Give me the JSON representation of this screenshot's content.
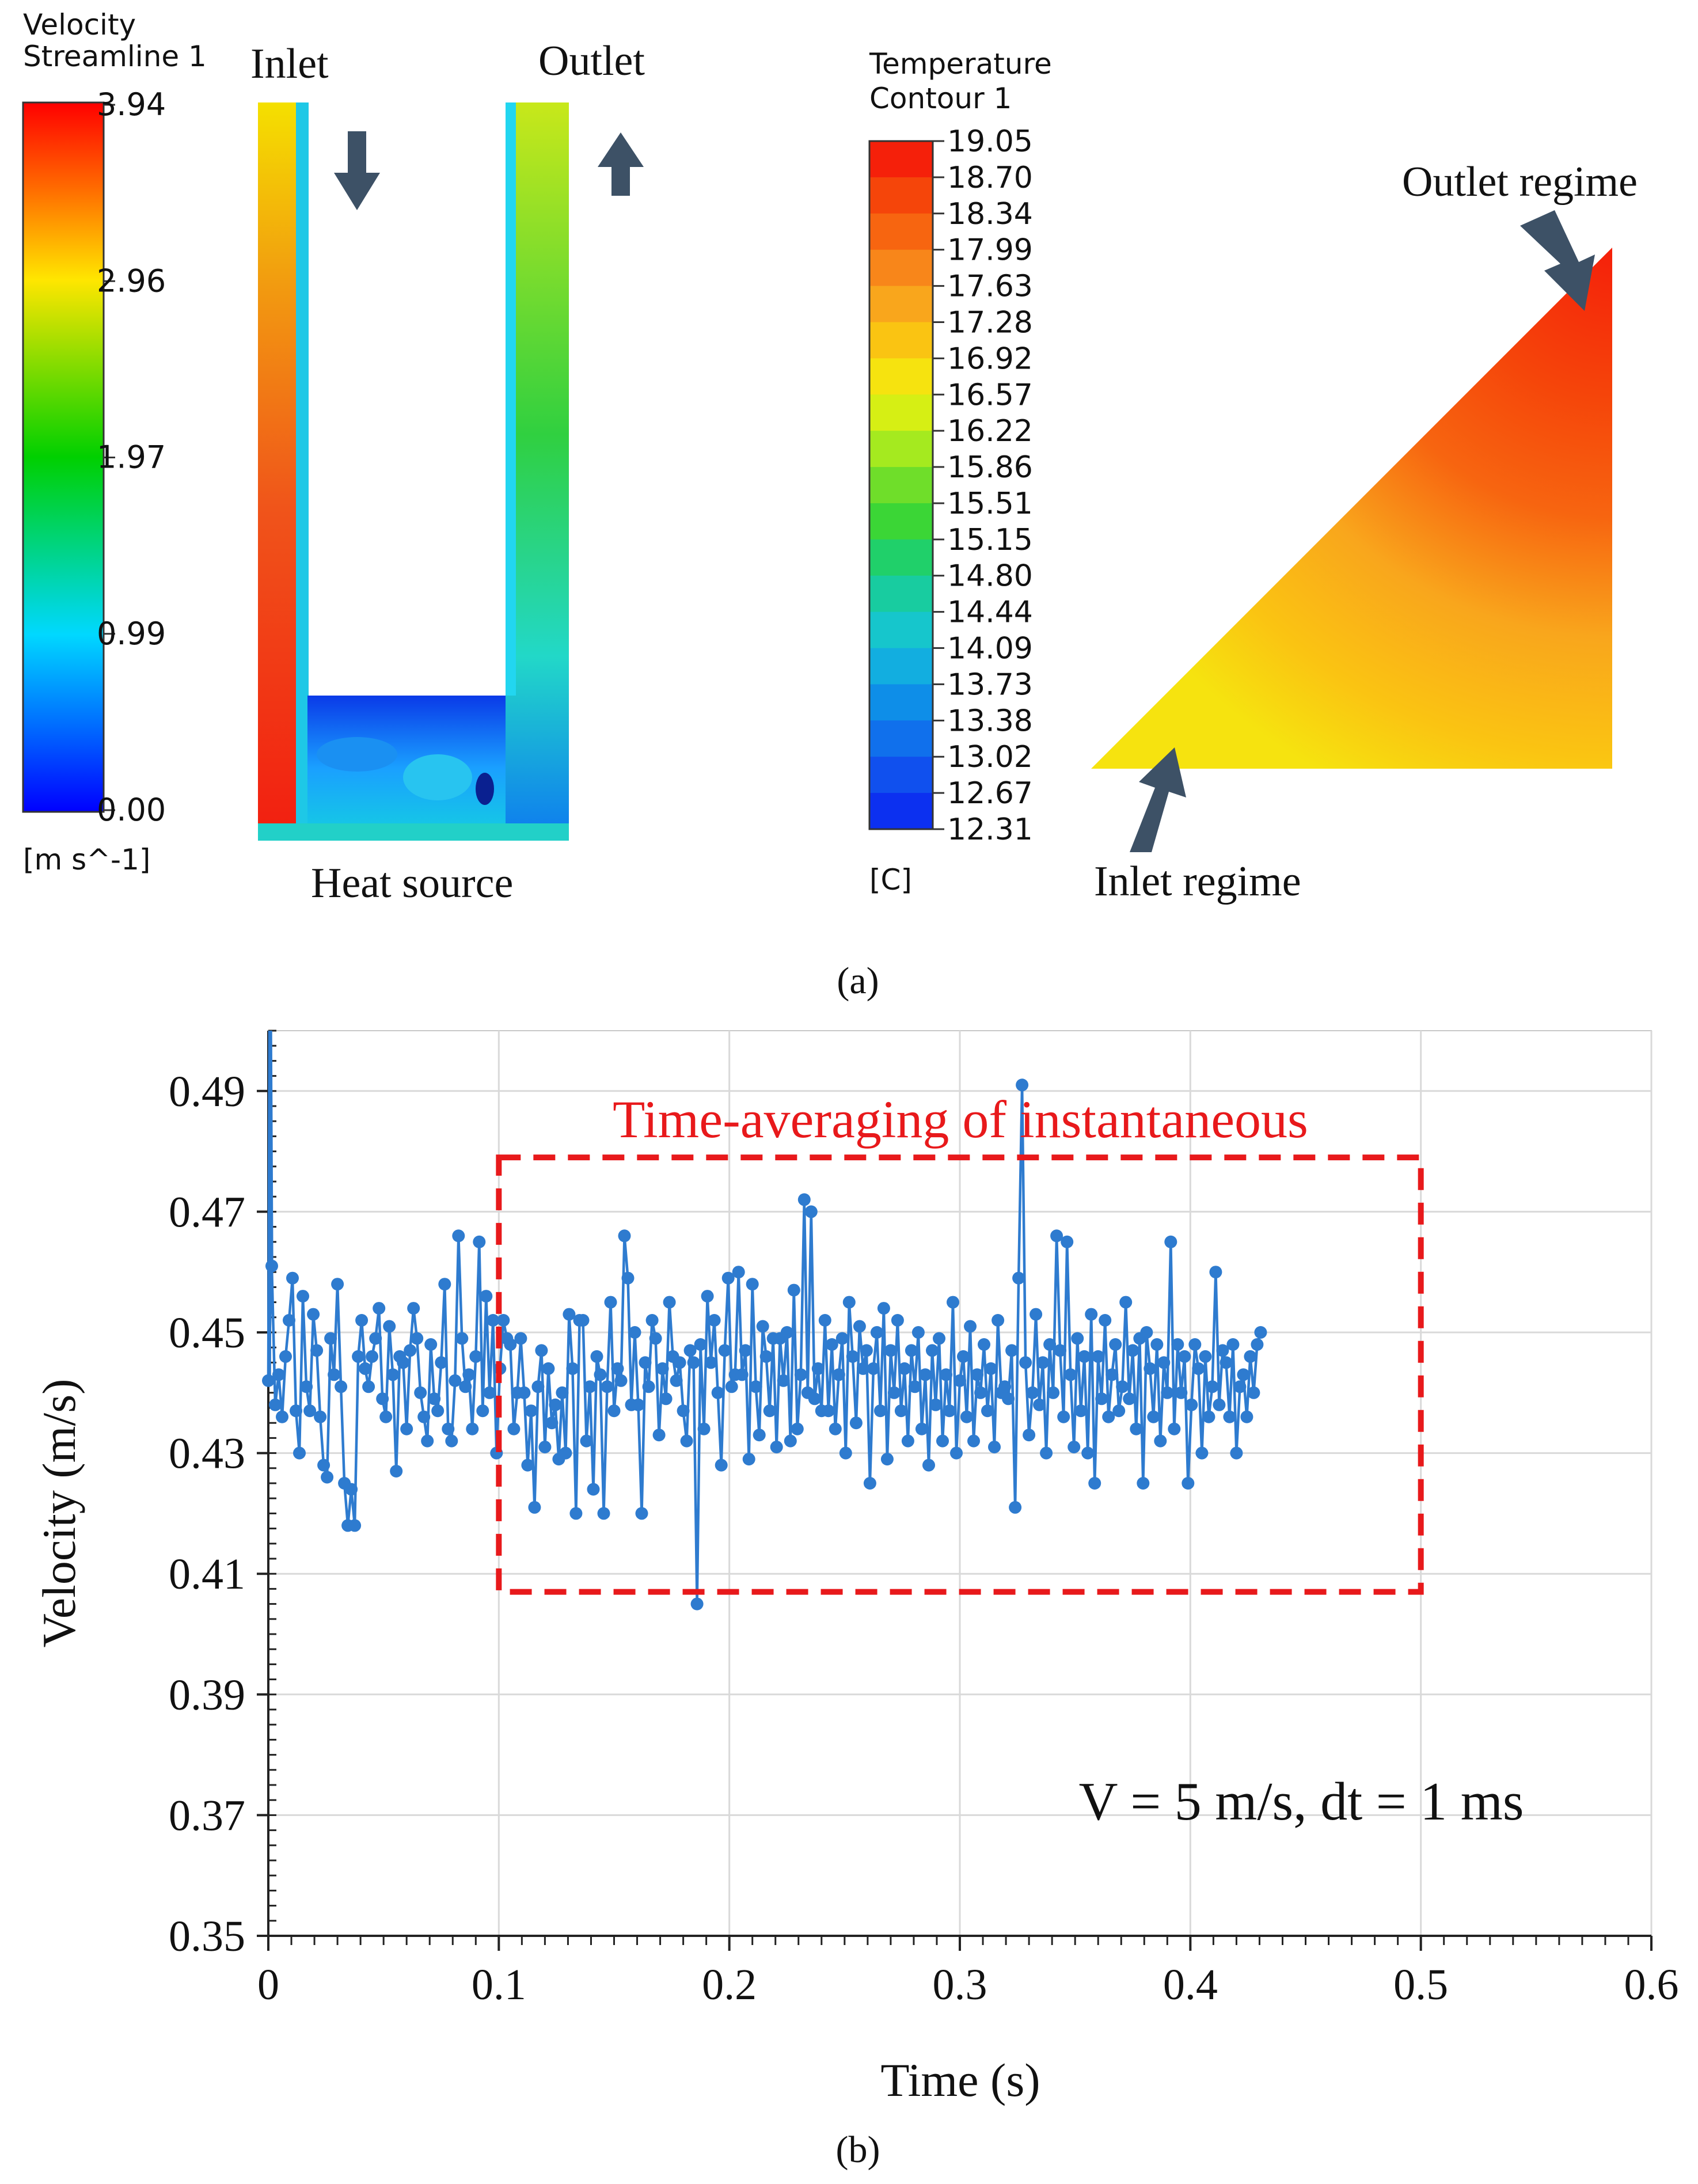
{
  "panel_a": {
    "caption": "(a)",
    "velocity_legend": {
      "title_line1": "Velocity",
      "title_line2": "Streamline 1",
      "ticks": [
        "3.94",
        "2.96",
        "1.97",
        "0.99",
        "0.00"
      ],
      "unit": "[m s^-1]"
    },
    "channel": {
      "inlet_label": "Inlet",
      "outlet_label": "Outlet",
      "heat_source_label": "Heat source"
    },
    "temperature_legend": {
      "title_line1": "Temperature",
      "title_line2": "Contour 1",
      "ticks": [
        "19.05",
        "18.70",
        "18.34",
        "17.99",
        "17.63",
        "17.28",
        "16.92",
        "16.57",
        "16.22",
        "15.86",
        "15.51",
        "15.15",
        "14.80",
        "14.44",
        "14.09",
        "13.73",
        "13.38",
        "13.02",
        "12.67",
        "12.31"
      ],
      "band_colors": [
        "#f5200a",
        "#f5450a",
        "#f76510",
        "#f8861a",
        "#f9a61c",
        "#fac412",
        "#f6e30f",
        "#d6ef14",
        "#a5ea1f",
        "#6fde2a",
        "#3bd636",
        "#20d06a",
        "#18cca0",
        "#16c6cc",
        "#12aee0",
        "#0e8ee8",
        "#1070ec",
        "#1050ee",
        "#0c30f0",
        "#0a10f4"
      ],
      "unit": "[C]"
    },
    "triangle": {
      "outlet_label": "Outlet regime",
      "inlet_label": "Inlet regime"
    }
  },
  "panel_b": {
    "caption": "(b)",
    "annotation": "V = 5 m/s, dt = 1 ms",
    "box_label": "Time-averaging of instantaneous"
  },
  "colors": {
    "arrow": "#3d5166",
    "series": "#2e7bcf",
    "box": "#e8191b"
  },
  "chart_data": {
    "type": "line",
    "xlabel": "Time (s)",
    "ylabel": "Velocity (m/s)",
    "xlim": [
      0,
      0.6
    ],
    "ylim": [
      0.35,
      0.5
    ],
    "xticks": [
      "0",
      "0.1",
      "0.2",
      "0.3",
      "0.4",
      "0.5",
      "0.6"
    ],
    "yticks": [
      "0.35",
      "0.37",
      "0.39",
      "0.41",
      "0.43",
      "0.45",
      "0.47",
      "0.49"
    ],
    "grid": true,
    "averaging_window_s": [
      0.1,
      0.5
    ],
    "averaging_window_velocity": [
      0.407,
      0.479
    ],
    "series": [
      {
        "name": "Velocity",
        "x_start": 0.0,
        "x_step": 0.0015,
        "startup_peak": 0.5,
        "values": [
          0.442,
          0.461,
          0.438,
          0.443,
          0.436,
          0.446,
          0.452,
          0.459,
          0.437,
          0.43,
          0.456,
          0.441,
          0.437,
          0.453,
          0.447,
          0.436,
          0.428,
          0.426,
          0.449,
          0.443,
          0.458,
          0.441,
          0.425,
          0.418,
          0.424,
          0.418,
          0.446,
          0.452,
          0.444,
          0.441,
          0.446,
          0.449,
          0.454,
          0.439,
          0.436,
          0.451,
          0.443,
          0.427,
          0.446,
          0.445,
          0.434,
          0.447,
          0.454,
          0.449,
          0.44,
          0.436,
          0.432,
          0.448,
          0.439,
          0.437,
          0.445,
          0.458,
          0.434,
          0.432,
          0.442,
          0.466,
          0.449,
          0.441,
          0.443,
          0.434,
          0.446,
          0.465,
          0.437,
          0.456,
          0.44,
          0.452,
          0.43,
          0.444,
          0.452,
          0.449,
          0.448,
          0.434,
          0.44,
          0.449,
          0.44,
          0.428,
          0.437,
          0.421,
          0.441,
          0.447,
          0.431,
          0.444,
          0.435,
          0.438,
          0.429,
          0.44,
          0.43,
          0.453,
          0.444,
          0.42,
          0.452,
          0.452,
          0.432,
          0.441,
          0.424,
          0.446,
          0.443,
          0.42,
          0.441,
          0.455,
          0.437,
          0.444,
          0.442,
          0.466,
          0.459,
          0.438,
          0.45,
          0.438,
          0.42,
          0.445,
          0.441,
          0.452,
          0.449,
          0.433,
          0.444,
          0.439,
          0.455,
          0.446,
          0.442,
          0.445,
          0.437,
          0.432,
          0.447,
          0.445,
          0.405,
          0.448,
          0.434,
          0.456,
          0.445,
          0.452,
          0.44,
          0.428,
          0.447,
          0.459,
          0.441,
          0.443,
          0.46,
          0.443,
          0.447,
          0.429,
          0.458,
          0.441,
          0.433,
          0.451,
          0.446,
          0.437,
          0.449,
          0.431,
          0.449,
          0.442,
          0.45,
          0.432,
          0.457,
          0.434,
          0.443,
          0.472,
          0.44,
          0.47,
          0.439,
          0.444,
          0.437,
          0.452,
          0.437,
          0.448,
          0.434,
          0.443,
          0.449,
          0.43,
          0.455,
          0.446,
          0.435,
          0.451,
          0.444,
          0.447,
          0.425,
          0.444,
          0.45,
          0.437,
          0.454,
          0.429,
          0.447,
          0.44,
          0.452,
          0.437,
          0.444,
          0.432,
          0.447,
          0.441,
          0.45,
          0.434,
          0.443,
          0.428,
          0.447,
          0.438,
          0.449,
          0.432,
          0.443,
          0.437,
          0.455,
          0.43,
          0.442,
          0.446,
          0.436,
          0.451,
          0.432,
          0.443,
          0.44,
          0.448,
          0.437,
          0.444,
          0.431,
          0.452,
          0.44,
          0.441,
          0.439,
          0.447,
          0.421,
          0.459,
          0.491,
          0.445,
          0.433,
          0.44,
          0.453,
          0.438,
          0.445,
          0.43,
          0.448,
          0.44,
          0.466,
          0.447,
          0.436,
          0.465,
          0.443,
          0.431,
          0.449,
          0.437,
          0.446,
          0.43,
          0.453,
          0.425,
          0.446,
          0.439,
          0.452,
          0.436,
          0.443,
          0.448,
          0.437,
          0.441,
          0.455,
          0.439,
          0.447,
          0.434,
          0.449,
          0.425,
          0.45,
          0.444,
          0.436,
          0.448,
          0.432,
          0.445,
          0.44,
          0.465,
          0.434,
          0.448,
          0.44,
          0.446,
          0.425,
          0.438,
          0.448,
          0.444,
          0.43,
          0.446,
          0.436,
          0.441,
          0.46,
          0.438,
          0.447,
          0.445,
          0.436,
          0.448,
          0.43,
          0.441,
          0.443,
          0.436,
          0.446,
          0.44,
          0.448,
          0.45
        ]
      }
    ]
  }
}
